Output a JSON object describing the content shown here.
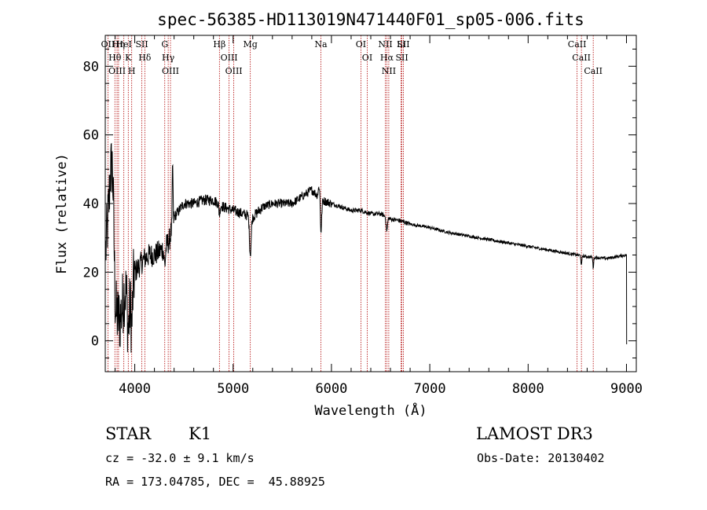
{
  "chart_data": {
    "type": "line",
    "title": "spec-56385-HD113019N471440F01_sp05-006.fits",
    "xlabel": "Wavelength (Å)",
    "ylabel": "Flux (relative)",
    "xlim": [
      3700,
      9100
    ],
    "ylim": [
      -9,
      89
    ],
    "x_ticks": [
      4000,
      5000,
      6000,
      7000,
      8000,
      9000
    ],
    "y_ticks": [
      0,
      20,
      40,
      60,
      80
    ],
    "colors": {
      "line": "#000000",
      "marker": "#b00000"
    },
    "spectral_lines": [
      {
        "label": "OII",
        "wavelength": 3727
      },
      {
        "label": "Hθ",
        "wavelength": 3798
      },
      {
        "label": "OIII",
        "wavelength": 3820
      },
      {
        "label": "Hη",
        "wavelength": 3835
      },
      {
        "label": "K",
        "wavelength": 3934
      },
      {
        "label": "HeI",
        "wavelength": 3889
      },
      {
        "label": "H",
        "wavelength": 3969
      },
      {
        "label": "SII",
        "wavelength": 4072
      },
      {
        "label": "Hδ",
        "wavelength": 4102
      },
      {
        "label": "G",
        "wavelength": 4305
      },
      {
        "label": "Hγ",
        "wavelength": 4340
      },
      {
        "label": "OIII",
        "wavelength": 4363
      },
      {
        "label": "Hβ",
        "wavelength": 4861
      },
      {
        "label": "OIII",
        "wavelength": 4959
      },
      {
        "label": "OIII",
        "wavelength": 5007
      },
      {
        "label": "Mg",
        "wavelength": 5175
      },
      {
        "label": "Na",
        "wavelength": 5893
      },
      {
        "label": "OI",
        "wavelength": 6300
      },
      {
        "label": "OI",
        "wavelength": 6364
      },
      {
        "label": "NII",
        "wavelength": 6548
      },
      {
        "label": "Hα",
        "wavelength": 6563
      },
      {
        "label": "NII",
        "wavelength": 6583
      },
      {
        "label": "Li",
        "wavelength": 6708
      },
      {
        "label": "SII",
        "wavelength": 6716
      },
      {
        "label": "SII",
        "wavelength": 6731
      },
      {
        "label": "CaII",
        "wavelength": 8498
      },
      {
        "label": "CaII",
        "wavelength": 8542
      },
      {
        "label": "CaII",
        "wavelength": 8662
      }
    ],
    "continuum": [
      [
        3700,
        24
      ],
      [
        3750,
        45
      ],
      [
        3800,
        8
      ],
      [
        3850,
        6
      ],
      [
        3900,
        15
      ],
      [
        3950,
        12
      ],
      [
        4000,
        20
      ],
      [
        4050,
        22
      ],
      [
        4100,
        24
      ],
      [
        4150,
        25
      ],
      [
        4200,
        25
      ],
      [
        4250,
        26
      ],
      [
        4300,
        27
      ],
      [
        4350,
        29
      ],
      [
        4400,
        36
      ],
      [
        4450,
        38
      ],
      [
        4500,
        40
      ],
      [
        4600,
        40
      ],
      [
        4700,
        41
      ],
      [
        4800,
        41
      ],
      [
        4900,
        39
      ],
      [
        5000,
        38
      ],
      [
        5100,
        37
      ],
      [
        5200,
        36
      ],
      [
        5300,
        39
      ],
      [
        5400,
        40
      ],
      [
        5500,
        40
      ],
      [
        5600,
        40
      ],
      [
        5700,
        42
      ],
      [
        5800,
        44
      ],
      [
        5900,
        41
      ],
      [
        6000,
        40
      ],
      [
        6100,
        39
      ],
      [
        6200,
        38
      ],
      [
        6300,
        38
      ],
      [
        6400,
        37
      ],
      [
        6500,
        37
      ],
      [
        6600,
        35.5
      ],
      [
        6700,
        35
      ],
      [
        6800,
        34
      ],
      [
        7000,
        33
      ],
      [
        7200,
        31.5
      ],
      [
        7400,
        30.5
      ],
      [
        7600,
        29.5
      ],
      [
        7800,
        28.5
      ],
      [
        8000,
        27.5
      ],
      [
        8200,
        26.5
      ],
      [
        8400,
        25.5
      ],
      [
        8600,
        24.5
      ],
      [
        8800,
        24
      ],
      [
        8900,
        24.5
      ],
      [
        9000,
        25
      ]
    ],
    "absorption_features": [
      {
        "wavelength": 5175,
        "depth": 11,
        "width": 12
      },
      {
        "wavelength": 5893,
        "depth": 11,
        "width": 10
      },
      {
        "wavelength": 4861,
        "depth": 3,
        "width": 8
      },
      {
        "wavelength": 4305,
        "depth": 5,
        "width": 10
      },
      {
        "wavelength": 3934,
        "depth": 10,
        "width": 12
      },
      {
        "wavelength": 3969,
        "depth": 10,
        "width": 12
      },
      {
        "wavelength": 6563,
        "depth": 4,
        "width": 10
      },
      {
        "wavelength": 8542,
        "depth": 3,
        "width": 6
      },
      {
        "wavelength": 8662,
        "depth": 3,
        "width": 6
      }
    ],
    "emission_features": [
      {
        "wavelength": 3775,
        "height": 22,
        "width": 20
      },
      {
        "wavelength": 4385,
        "height": 18,
        "width": 5
      },
      {
        "wavelength": 5880,
        "height": 4,
        "width": 15
      }
    ],
    "end_drop": {
      "wavelength": 9002,
      "min": -1
    }
  },
  "footer": {
    "object_class": "STAR",
    "subclass": "K1",
    "redshift": "cz = -32.0 ± 9.1 km/s",
    "coords": "RA = 173.04785, DEC =  45.88925",
    "survey": "LAMOST DR3",
    "obs_date": "Obs-Date: 20130402"
  }
}
